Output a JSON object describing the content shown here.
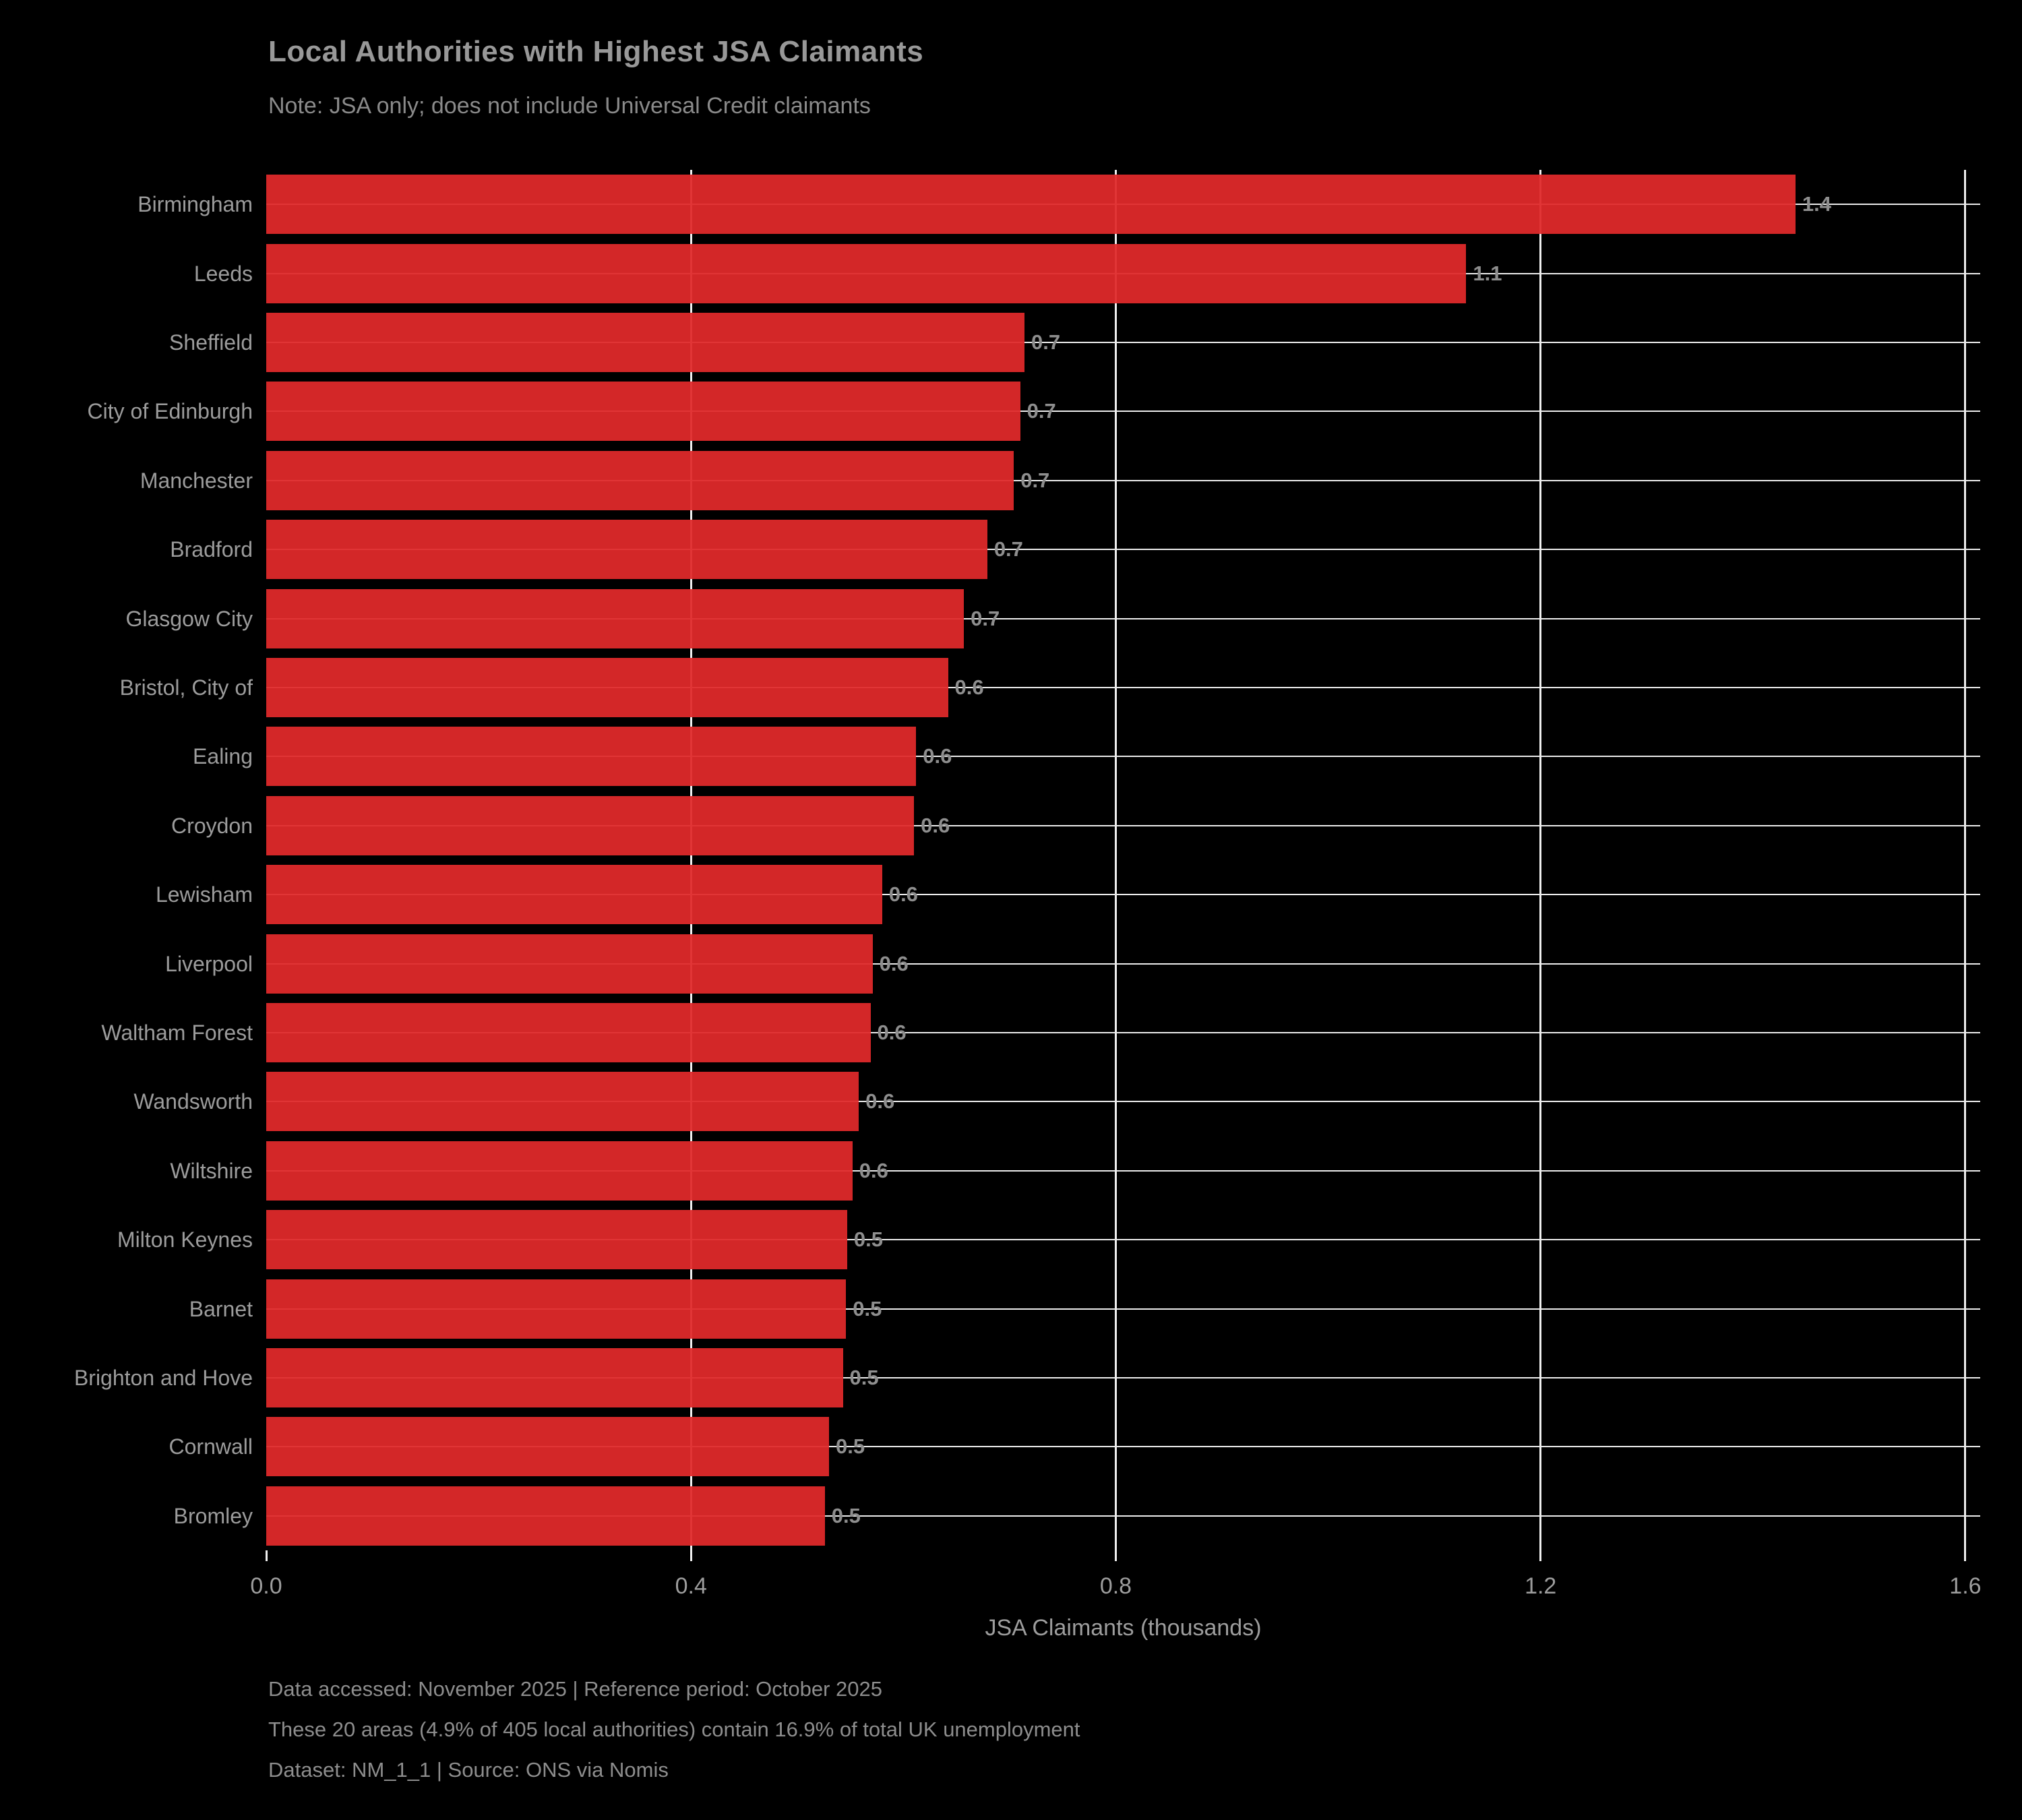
{
  "header": {
    "title": "Local Authorities with Highest JSA Claimants",
    "subtitle": "Note: JSA only; does not include Universal Credit claimants"
  },
  "footer": {
    "line1": "Data accessed: November 2025 | Reference period: October 2025",
    "line2": "These 20 areas (4.9% of 405 local authorities) contain 16.9% of total UK unemployment",
    "line3": "Dataset: NM_1_1 | Source: ONS via Nomis"
  },
  "colors": {
    "background": "#000000",
    "bar": "#d62728",
    "gridline": "#efefef",
    "text_gray": "#9c9c9c"
  },
  "chart_data": {
    "type": "bar",
    "orientation": "horizontal",
    "title": "Local Authorities with Highest JSA Claimants",
    "subtitle": "Note: JSA only; does not include Universal Credit claimants",
    "xlabel": "JSA Claimants (thousands)",
    "ylabel": "",
    "xlim": [
      0,
      1.614
    ],
    "x_ticks": [
      0.0,
      0.4,
      0.8,
      1.2,
      1.6
    ],
    "x_tick_labels": [
      "0.0",
      "0.4",
      "0.8",
      "1.2",
      "1.6"
    ],
    "grid": true,
    "legend": false,
    "categories": [
      "Birmingham",
      "Leeds",
      "Sheffield",
      "City of Edinburgh",
      "Manchester",
      "Bradford",
      "Glasgow City",
      "Bristol, City of",
      "Ealing",
      "Croydon",
      "Lewisham",
      "Liverpool",
      "Waltham Forest",
      "Wandsworth",
      "Wiltshire",
      "Milton Keynes",
      "Barnet",
      "Brighton and Hove",
      "Cornwall",
      "Bromley"
    ],
    "values": [
      1.44,
      1.13,
      0.714,
      0.71,
      0.704,
      0.679,
      0.657,
      0.642,
      0.612,
      0.61,
      0.58,
      0.571,
      0.569,
      0.558,
      0.552,
      0.547,
      0.546,
      0.543,
      0.53,
      0.526
    ],
    "bar_labels": [
      "1.4",
      "1.1",
      "0.7",
      "0.7",
      "0.7",
      "0.7",
      "0.7",
      "0.6",
      "0.6",
      "0.6",
      "0.6",
      "0.6",
      "0.6",
      "0.6",
      "0.6",
      "0.5",
      "0.5",
      "0.5",
      "0.5",
      "0.5"
    ]
  }
}
